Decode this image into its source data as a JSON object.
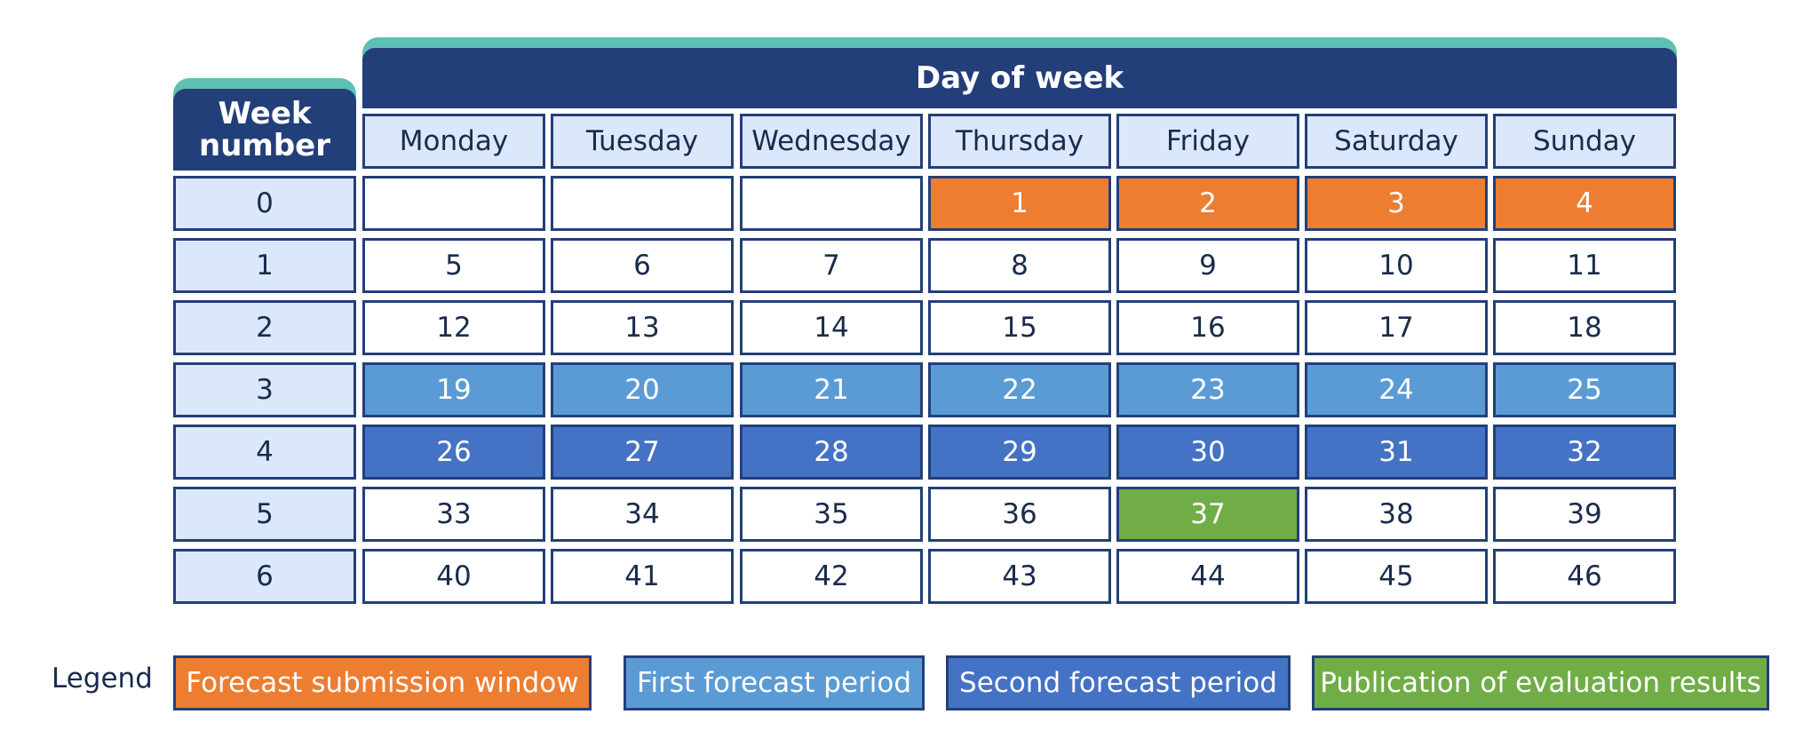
{
  "header": {
    "week_label": "Week number",
    "day_label": "Day of week"
  },
  "days": [
    "Monday",
    "Tuesday",
    "Wednesday",
    "Thursday",
    "Friday",
    "Saturday",
    "Sunday"
  ],
  "weeks": [
    "0",
    "1",
    "2",
    "3",
    "4",
    "5",
    "6"
  ],
  "calendar": [
    [
      "",
      "",
      "",
      "1",
      "2",
      "3",
      "4"
    ],
    [
      "5",
      "6",
      "7",
      "8",
      "9",
      "10",
      "11"
    ],
    [
      "12",
      "13",
      "14",
      "15",
      "16",
      "17",
      "18"
    ],
    [
      "19",
      "20",
      "21",
      "22",
      "23",
      "24",
      "25"
    ],
    [
      "26",
      "27",
      "28",
      "29",
      "30",
      "31",
      "32"
    ],
    [
      "33",
      "34",
      "35",
      "36",
      "37",
      "38",
      "39"
    ],
    [
      "40",
      "41",
      "42",
      "43",
      "44",
      "45",
      "46"
    ]
  ],
  "cell_styles": [
    [
      "white",
      "white",
      "white",
      "orange",
      "orange",
      "orange",
      "orange"
    ],
    [
      "white",
      "white",
      "white",
      "white",
      "white",
      "white",
      "white"
    ],
    [
      "white",
      "white",
      "white",
      "white",
      "white",
      "white",
      "white"
    ],
    [
      "lightblue",
      "lightblue",
      "lightblue",
      "lightblue",
      "lightblue",
      "lightblue",
      "lightblue"
    ],
    [
      "darkblue",
      "darkblue",
      "darkblue",
      "darkblue",
      "darkblue",
      "darkblue",
      "darkblue"
    ],
    [
      "white",
      "white",
      "white",
      "white",
      "green",
      "white",
      "white"
    ],
    [
      "white",
      "white",
      "white",
      "white",
      "white",
      "white",
      "white"
    ]
  ],
  "legend": {
    "label": "Legend",
    "items": [
      {
        "label": "Forecast submission window",
        "style": "orange"
      },
      {
        "label": "First forecast period",
        "style": "lightblue"
      },
      {
        "label": "Second forecast period",
        "style": "darkblue"
      },
      {
        "label": "Publication of evaluation results",
        "style": "green"
      }
    ]
  },
  "colors": {
    "header": "#233f7a",
    "tab_accent": "#5fbfb2",
    "label_cell": "#dbe7fb",
    "orange": "#ed7d31",
    "lightblue": "#5b9bd5",
    "darkblue": "#4472c4",
    "green": "#70ad47"
  }
}
